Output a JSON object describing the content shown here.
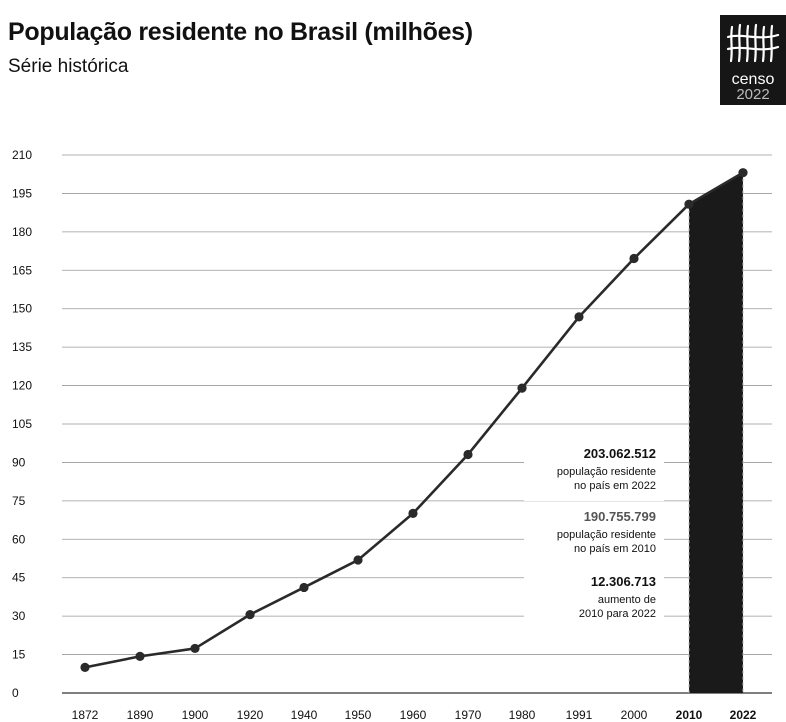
{
  "header": {
    "title": "População residente no Brasil (milhões)",
    "subtitle": "Série histórica"
  },
  "logo": {
    "word": "censo",
    "year": "2022"
  },
  "chart_data": {
    "type": "line",
    "title": "População residente no Brasil (milhões)",
    "subtitle": "Série histórica",
    "xlabel": "",
    "ylabel": "",
    "x": [
      "1872",
      "1890",
      "1900",
      "1920",
      "1940",
      "1950",
      "1960",
      "1970",
      "1980",
      "1991",
      "2000",
      "2010",
      "2022"
    ],
    "values": [
      10,
      14.3,
      17.4,
      30.6,
      41.2,
      51.9,
      70.1,
      93.1,
      119,
      146.8,
      169.6,
      190.8,
      203.1
    ],
    "ylim": [
      0,
      210
    ],
    "yticks": [
      0,
      15,
      30,
      45,
      60,
      75,
      90,
      105,
      120,
      135,
      150,
      165,
      180,
      195,
      210
    ],
    "grid": true,
    "highlight_range": [
      "2010",
      "2022"
    ],
    "highlight_color": "#1a1a1a",
    "line_color": "#2a2a2a",
    "annotations": [
      {
        "value": "203.062.512",
        "lines": [
          "população residente",
          "no país em 2022"
        ],
        "emphasis": "dark"
      },
      {
        "value": "190.755.799",
        "lines": [
          "população residente",
          "no país em 2010"
        ],
        "emphasis": "gray"
      },
      {
        "value": "12.306.713",
        "lines": [
          "aumento de",
          "2010 para 2022"
        ],
        "emphasis": "dark"
      }
    ]
  }
}
